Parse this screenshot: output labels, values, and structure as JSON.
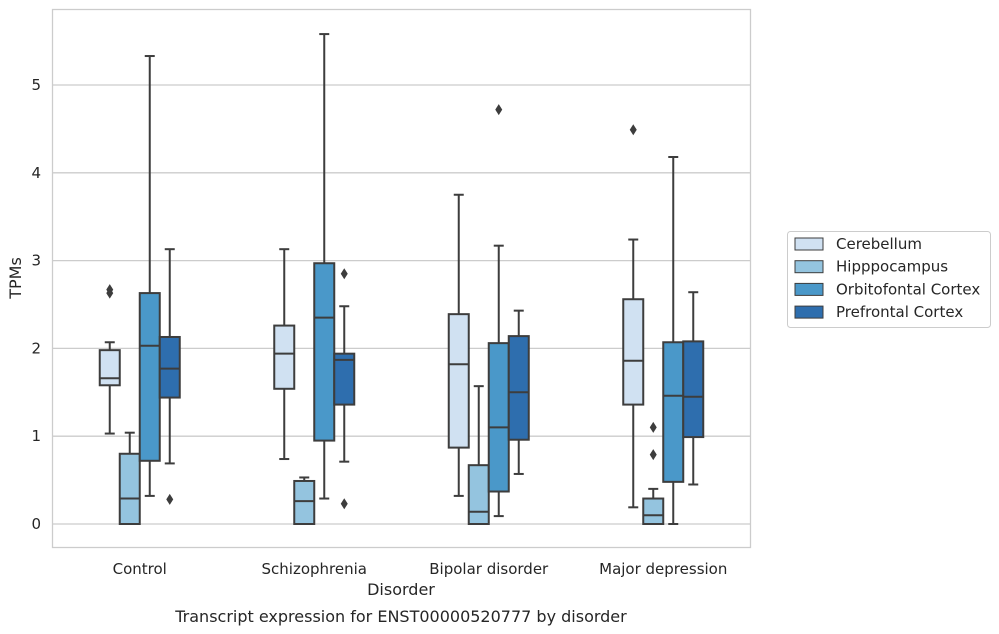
{
  "chart_data": {
    "type": "box",
    "title": "Transcript expression for ENST00000520777 by disorder",
    "xlabel": "Disorder",
    "ylabel": "TPMs",
    "ylim": [
      -0.27,
      5.82
    ],
    "yticks": [
      0,
      1,
      2,
      3,
      4,
      5
    ],
    "grid": "horizontal",
    "legend_position": "right",
    "categories": [
      "Control",
      "Schizophrenia",
      "Bipolar disorder",
      "Major depression"
    ],
    "series": [
      {
        "name": "Cerebellum",
        "color": "#d0e1f2",
        "boxes": [
          {
            "whisker_low": 1.03,
            "q1": 1.58,
            "median": 1.66,
            "q3": 1.98,
            "whisker_high": 2.07,
            "outliers": [
              2.63,
              2.67
            ]
          },
          {
            "whisker_low": 0.74,
            "q1": 1.54,
            "median": 1.94,
            "q3": 2.26,
            "whisker_high": 3.13,
            "outliers": []
          },
          {
            "whisker_low": 0.32,
            "q1": 0.87,
            "median": 1.82,
            "q3": 2.39,
            "whisker_high": 3.75,
            "outliers": []
          },
          {
            "whisker_low": 0.19,
            "q1": 1.36,
            "median": 1.86,
            "q3": 2.56,
            "whisker_high": 3.24,
            "outliers": [
              4.49
            ]
          }
        ]
      },
      {
        "name": "Hipppocampus",
        "color": "#94c4df",
        "boxes": [
          {
            "whisker_low": 0.0,
            "q1": 0.0,
            "median": 0.29,
            "q3": 0.8,
            "whisker_high": 1.04,
            "outliers": []
          },
          {
            "whisker_low": 0.0,
            "q1": 0.0,
            "median": 0.26,
            "q3": 0.49,
            "whisker_high": 0.53,
            "outliers": []
          },
          {
            "whisker_low": 0.0,
            "q1": 0.0,
            "median": 0.14,
            "q3": 0.67,
            "whisker_high": 1.57,
            "outliers": []
          },
          {
            "whisker_low": 0.0,
            "q1": 0.0,
            "median": 0.1,
            "q3": 0.29,
            "whisker_high": 0.4,
            "outliers": [
              0.79,
              1.1
            ]
          }
        ]
      },
      {
        "name": "Orbitofontal Cortex",
        "color": "#4a98c9",
        "boxes": [
          {
            "whisker_low": 0.32,
            "q1": 0.72,
            "median": 2.03,
            "q3": 2.63,
            "whisker_high": 5.33,
            "outliers": []
          },
          {
            "whisker_low": 0.29,
            "q1": 0.95,
            "median": 2.35,
            "q3": 2.97,
            "whisker_high": 5.58,
            "outliers": []
          },
          {
            "whisker_low": 0.09,
            "q1": 0.37,
            "median": 1.1,
            "q3": 2.06,
            "whisker_high": 3.17,
            "outliers": [
              4.72
            ]
          },
          {
            "whisker_low": 0.0,
            "q1": 0.48,
            "median": 1.46,
            "q3": 2.07,
            "whisker_high": 4.18,
            "outliers": []
          }
        ]
      },
      {
        "name": "Prefrontal Cortex",
        "color": "#2e6eae",
        "boxes": [
          {
            "whisker_low": 0.69,
            "q1": 1.44,
            "median": 1.77,
            "q3": 2.13,
            "whisker_high": 3.13,
            "outliers": [
              0.28
            ]
          },
          {
            "whisker_low": 0.71,
            "q1": 1.36,
            "median": 1.87,
            "q3": 1.94,
            "whisker_high": 2.48,
            "outliers": [
              0.23,
              2.85
            ]
          },
          {
            "whisker_low": 0.57,
            "q1": 0.96,
            "median": 1.5,
            "q3": 2.14,
            "whisker_high": 2.43,
            "outliers": []
          },
          {
            "whisker_low": 0.45,
            "q1": 0.99,
            "median": 1.45,
            "q3": 2.08,
            "whisker_high": 2.64,
            "outliers": []
          }
        ]
      }
    ]
  }
}
